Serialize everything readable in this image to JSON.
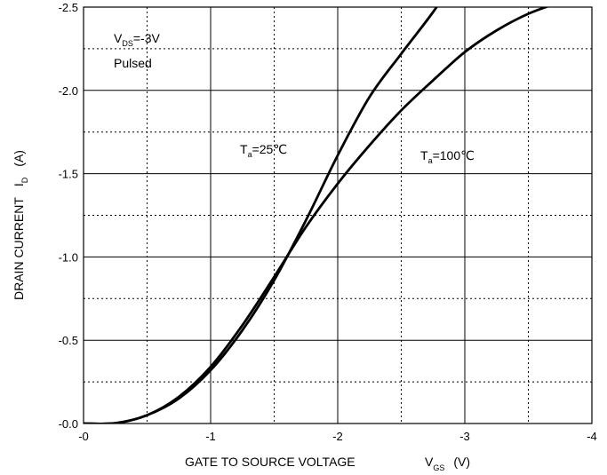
{
  "chart_data": {
    "type": "line",
    "xlabel": {
      "text": "GATE TO SOURCE VOLTAGE",
      "sym": "V",
      "sub": "GS",
      "unit": "(V)"
    },
    "ylabel": {
      "text": "DRAIN CURRENT",
      "sym": "I",
      "sub": "D",
      "unit": "(A)"
    },
    "x_ticks": [
      "-0",
      "-1",
      "-2",
      "-3",
      "-4"
    ],
    "y_ticks": [
      "-0.0",
      "-0.5",
      "-1.0",
      "-1.5",
      "-2.0",
      "-2.5"
    ],
    "xlim": [
      0,
      -4
    ],
    "ylim": [
      0,
      -2.5
    ],
    "grid": true,
    "condition": {
      "sym": "V",
      "sub": "DS",
      "value": "=-3V",
      "line2": "Pulsed"
    },
    "series": [
      {
        "name": "Ta=25℃",
        "label": {
          "sym": "T",
          "sub": "a",
          "value": "=25℃"
        },
        "x": [
          0,
          -0.25,
          -0.5,
          -0.75,
          -1.0,
          -1.25,
          -1.5,
          -1.75,
          -2.0,
          -2.25,
          -2.5,
          -2.75,
          -3.0
        ],
        "y": [
          0,
          -0.002,
          -0.05,
          -0.15,
          -0.32,
          -0.56,
          -0.86,
          -1.22,
          -1.61,
          -1.96,
          -2.22,
          -2.47,
          -2.75
        ]
      },
      {
        "name": "Ta=100℃",
        "label": {
          "sym": "T",
          "sub": "a",
          "value": "=100℃"
        },
        "x": [
          0,
          -0.25,
          -0.5,
          -0.75,
          -1.0,
          -1.25,
          -1.5,
          -1.75,
          -2.0,
          -2.25,
          -2.5,
          -2.75,
          -3.0,
          -3.25,
          -3.5,
          -3.75
        ],
        "y": [
          0,
          -0.002,
          -0.05,
          -0.16,
          -0.34,
          -0.59,
          -0.88,
          -1.18,
          -1.44,
          -1.67,
          -1.88,
          -2.06,
          -2.23,
          -2.36,
          -2.46,
          -2.53
        ]
      }
    ]
  }
}
